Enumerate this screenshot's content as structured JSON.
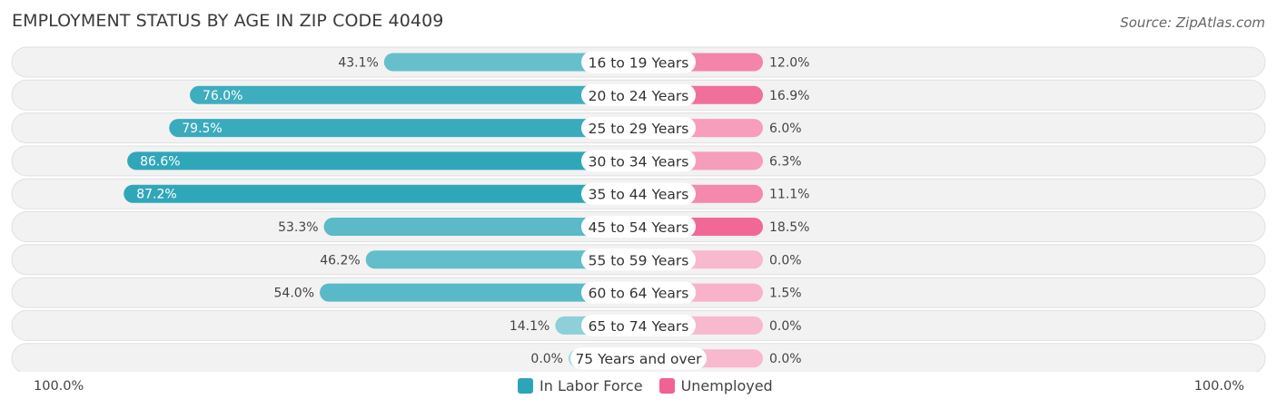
{
  "header": {
    "title": "EMPLOYMENT STATUS BY AGE IN ZIP CODE 40409",
    "source": "Source: ZipAtlas.com"
  },
  "axis": {
    "left_label": "100.0%",
    "right_label": "100.0%"
  },
  "legend": [
    {
      "name": "In Labor Force",
      "color": "#2ca5b8"
    },
    {
      "name": "Unemployed",
      "color": "#f06292"
    }
  ],
  "chart_data": {
    "type": "bar",
    "orientation": "horizontal-diverging",
    "title": "EMPLOYMENT STATUS BY AGE IN ZIP CODE 40409",
    "categories": [
      "16 to 19 Years",
      "20 to 24 Years",
      "25 to 29 Years",
      "30 to 34 Years",
      "35 to 44 Years",
      "45 to 54 Years",
      "55 to 59 Years",
      "60 to 64 Years",
      "65 to 74 Years",
      "75 Years and over"
    ],
    "series": [
      {
        "name": "In Labor Force",
        "side": "left",
        "values": [
          43.1,
          76.0,
          79.5,
          86.6,
          87.2,
          53.3,
          46.2,
          54.0,
          14.1,
          0.0
        ],
        "labels": [
          "43.1%",
          "76.0%",
          "79.5%",
          "86.6%",
          "87.2%",
          "53.3%",
          "46.2%",
          "54.0%",
          "14.1%",
          "0.0%"
        ]
      },
      {
        "name": "Unemployed",
        "side": "right",
        "values": [
          12.0,
          16.9,
          6.0,
          6.3,
          11.1,
          18.5,
          0.0,
          1.5,
          0.0,
          0.0
        ],
        "labels": [
          "12.0%",
          "16.9%",
          "6.0%",
          "6.3%",
          "11.1%",
          "18.5%",
          "0.0%",
          "1.5%",
          "0.0%",
          "0.0%"
        ]
      }
    ],
    "xlim_left": [
      0,
      100
    ],
    "xlim_right": [
      0,
      100
    ],
    "xlabel_left": "100.0%",
    "xlabel_right": "100.0%",
    "legend_position": "bottom-center"
  }
}
